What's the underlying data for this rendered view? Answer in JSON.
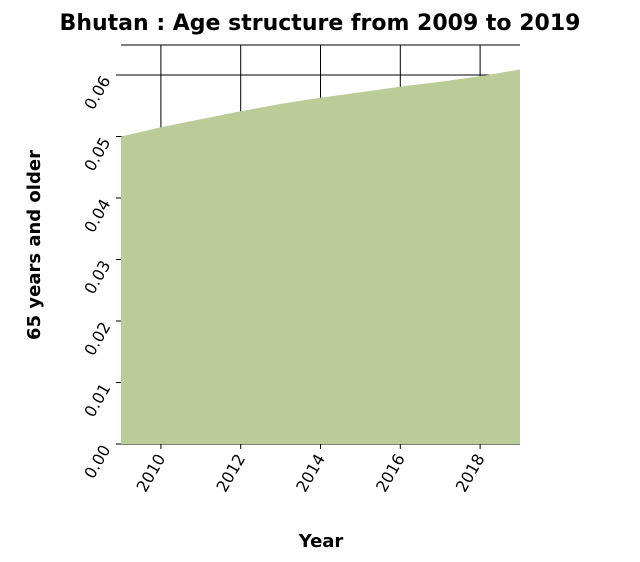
{
  "chart_data": {
    "type": "area",
    "title": "Bhutan : Age structure from 2009 to 2019",
    "xlabel": "Year",
    "ylabel": "65 years and older",
    "x": [
      2009,
      2010,
      2011,
      2012,
      2013,
      2014,
      2015,
      2016,
      2017,
      2018,
      2019
    ],
    "series": [
      {
        "values": [
          0.05,
          0.0515,
          0.0528,
          0.0541,
          0.0553,
          0.0563,
          0.0572,
          0.0581,
          0.0589,
          0.0598,
          0.0609
        ]
      }
    ],
    "xlim": [
      2009,
      2019
    ],
    "ylim": [
      0,
      0.06
    ],
    "xticks": [
      2010,
      2012,
      2014,
      2016,
      2018
    ],
    "yticks": [
      0.0,
      0.01,
      0.02,
      0.03,
      0.04,
      0.05,
      0.06
    ],
    "ytick_labels": [
      "0.00",
      "0.01",
      "0.02",
      "0.03",
      "0.04",
      "0.05",
      "0.06"
    ],
    "xtick_labels": [
      "2010",
      "2012",
      "2014",
      "2016",
      "2018"
    ],
    "fill_color": "#bbcc99",
    "grid": true
  }
}
